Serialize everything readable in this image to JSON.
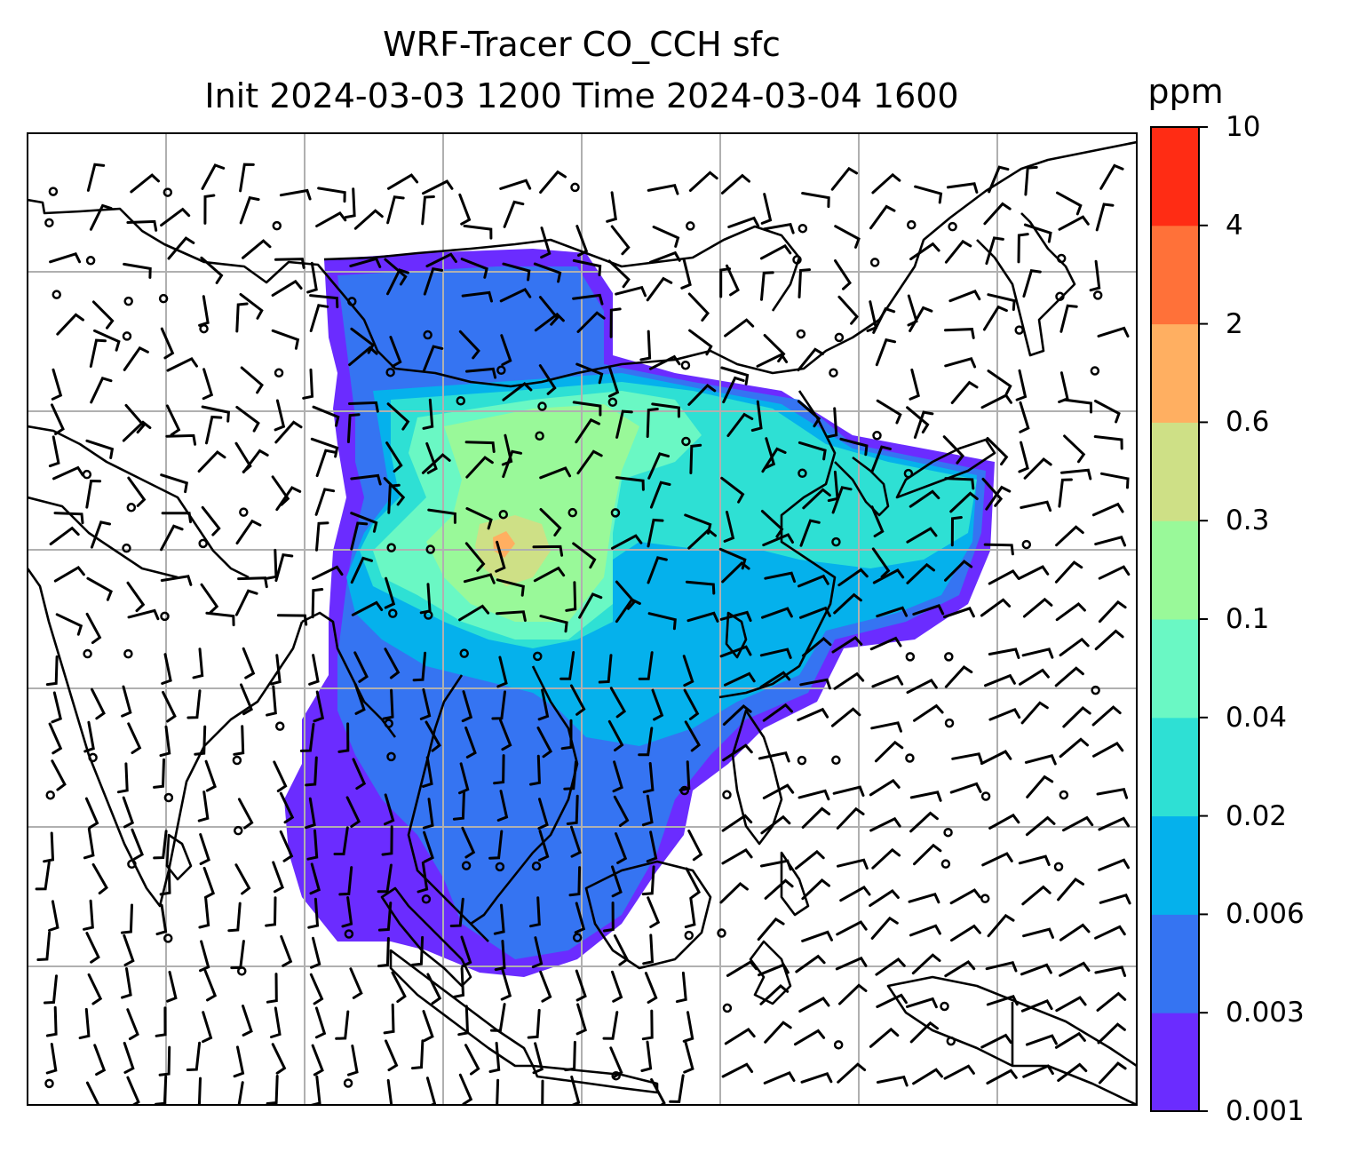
{
  "title": {
    "line1": "WRF-Tracer CO_CCH sfc",
    "line2": "Init 2024-03-03 1200 Time 2024-03-04 1600"
  },
  "colorbar": {
    "units": "ppm",
    "ticks": [
      "10",
      "4",
      "2",
      "0.6",
      "0.3",
      "0.1",
      "0.04",
      "0.02",
      "0.006",
      "0.003",
      "0.001"
    ],
    "colors": [
      "#6b2cff",
      "#3574f2",
      "#05b1ec",
      "#2ee0d4",
      "#6af8c4",
      "#99f999",
      "#cee086",
      "#ffaf61",
      "#ff7139",
      "#ff2c14"
    ]
  },
  "map": {
    "land_outline_color": "#000000",
    "gridline_color": "#b0b0b0",
    "wind_barbs": "black"
  }
}
